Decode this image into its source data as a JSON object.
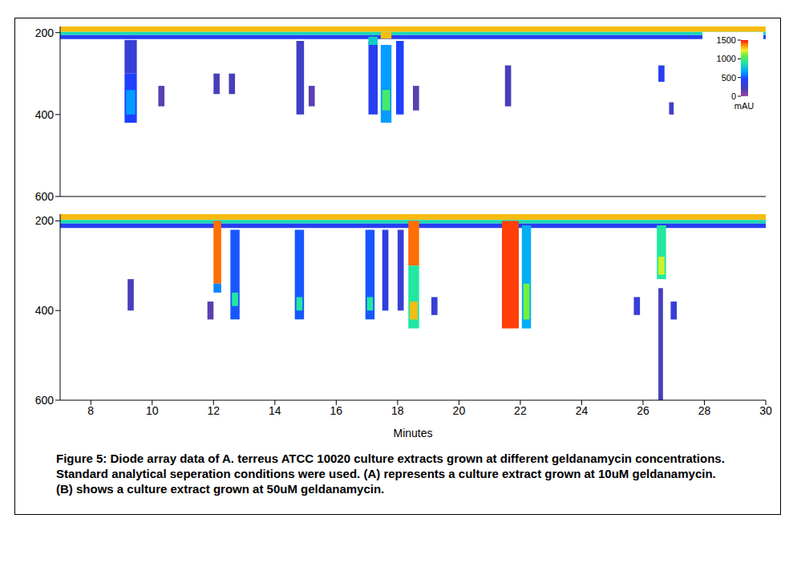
{
  "chart_data": [
    {
      "type": "heatmap",
      "panel": "A",
      "xlim": [
        7,
        30
      ],
      "xticks": [
        8,
        10,
        12,
        14,
        16,
        18,
        20,
        22,
        24,
        26,
        28,
        30
      ],
      "ylim": [
        185,
        600
      ],
      "yticks": [
        200,
        400,
        600
      ],
      "tick_labels": "y",
      "colorbar": {
        "range": [
          0,
          1500
        ],
        "ticks": [
          0,
          500,
          1000,
          1500
        ],
        "label": "mAU"
      },
      "cells": [
        {
          "x": [
            7,
            30
          ],
          "y": [
            185,
            198
          ],
          "value": 1300
        },
        {
          "x": [
            7,
            30
          ],
          "y": [
            198,
            206
          ],
          "value": 850
        },
        {
          "x": [
            7,
            30
          ],
          "y": [
            206,
            216
          ],
          "value": 400
        },
        {
          "x": [
            9.1,
            9.5
          ],
          "y": [
            218,
            300
          ],
          "value": 300
        },
        {
          "x": [
            9.1,
            9.5
          ],
          "y": [
            300,
            420
          ],
          "value": 450
        },
        {
          "x": [
            9.15,
            9.45
          ],
          "y": [
            340,
            400
          ],
          "value": 650
        },
        {
          "x": [
            10.2,
            10.4
          ],
          "y": [
            330,
            380
          ],
          "value": 150
        },
        {
          "x": [
            12.0,
            12.2
          ],
          "y": [
            300,
            350
          ],
          "value": 200
        },
        {
          "x": [
            12.5,
            12.7
          ],
          "y": [
            300,
            350
          ],
          "value": 200
        },
        {
          "x": [
            14.7,
            14.95
          ],
          "y": [
            220,
            400
          ],
          "value": 250
        },
        {
          "x": [
            15.1,
            15.3
          ],
          "y": [
            330,
            380
          ],
          "value": 150
        },
        {
          "x": [
            17.05,
            17.35
          ],
          "y": [
            220,
            400
          ],
          "value": 400
        },
        {
          "x": [
            17.05,
            17.35
          ],
          "y": [
            210,
            230
          ],
          "value": 800
        },
        {
          "x": [
            17.45,
            17.8
          ],
          "y": [
            198,
            215
          ],
          "value": 1300
        },
        {
          "x": [
            17.45,
            17.8
          ],
          "y": [
            230,
            420
          ],
          "value": 650
        },
        {
          "x": [
            17.5,
            17.75
          ],
          "y": [
            340,
            390
          ],
          "value": 1000
        },
        {
          "x": [
            17.95,
            18.2
          ],
          "y": [
            220,
            400
          ],
          "value": 450
        },
        {
          "x": [
            18.5,
            18.7
          ],
          "y": [
            330,
            390
          ],
          "value": 150
        },
        {
          "x": [
            21.5,
            21.7
          ],
          "y": [
            280,
            380
          ],
          "value": 200
        },
        {
          "x": [
            26.5,
            26.7
          ],
          "y": [
            280,
            320
          ],
          "value": 400
        },
        {
          "x": [
            26.85,
            27.0
          ],
          "y": [
            370,
            400
          ],
          "value": 250
        }
      ]
    },
    {
      "type": "heatmap",
      "panel": "B",
      "xlim": [
        7,
        30
      ],
      "xticks": [
        8,
        10,
        12,
        14,
        16,
        18,
        20,
        22,
        24,
        26,
        28,
        30
      ],
      "ylim": [
        185,
        600
      ],
      "yticks": [
        200,
        400,
        600
      ],
      "xlabel": "Minutes",
      "cells": [
        {
          "x": [
            7,
            30
          ],
          "y": [
            185,
            198
          ],
          "value": 1300
        },
        {
          "x": [
            7,
            30
          ],
          "y": [
            198,
            206
          ],
          "value": 850
        },
        {
          "x": [
            7,
            30
          ],
          "y": [
            206,
            216
          ],
          "value": 400
        },
        {
          "x": [
            9.2,
            9.4
          ],
          "y": [
            330,
            400
          ],
          "value": 200
        },
        {
          "x": [
            11.8,
            12.0
          ],
          "y": [
            380,
            420
          ],
          "value": 150
        },
        {
          "x": [
            12.0,
            12.25
          ],
          "y": [
            200,
            340
          ],
          "value": 1400
        },
        {
          "x": [
            12.0,
            12.25
          ],
          "y": [
            340,
            360
          ],
          "value": 600
        },
        {
          "x": [
            12.55,
            12.85
          ],
          "y": [
            220,
            420
          ],
          "value": 500
        },
        {
          "x": [
            12.6,
            12.8
          ],
          "y": [
            360,
            390
          ],
          "value": 900
        },
        {
          "x": [
            14.65,
            14.95
          ],
          "y": [
            220,
            420
          ],
          "value": 500
        },
        {
          "x": [
            14.7,
            14.9
          ],
          "y": [
            370,
            400
          ],
          "value": 900
        },
        {
          "x": [
            16.95,
            17.25
          ],
          "y": [
            220,
            420
          ],
          "value": 500
        },
        {
          "x": [
            17.0,
            17.2
          ],
          "y": [
            370,
            400
          ],
          "value": 900
        },
        {
          "x": [
            17.5,
            17.7
          ],
          "y": [
            220,
            400
          ],
          "value": 350
        },
        {
          "x": [
            18.0,
            18.2
          ],
          "y": [
            220,
            400
          ],
          "value": 300
        },
        {
          "x": [
            18.35,
            18.7
          ],
          "y": [
            200,
            300
          ],
          "value": 1400
        },
        {
          "x": [
            18.35,
            18.7
          ],
          "y": [
            300,
            440
          ],
          "value": 900
        },
        {
          "x": [
            18.4,
            18.65
          ],
          "y": [
            380,
            420
          ],
          "value": 1300
        },
        {
          "x": [
            19.1,
            19.3
          ],
          "y": [
            370,
            410
          ],
          "value": 300
        },
        {
          "x": [
            21.4,
            21.95
          ],
          "y": [
            200,
            440
          ],
          "value": 1450
        },
        {
          "x": [
            22.05,
            22.35
          ],
          "y": [
            210,
            440
          ],
          "value": 700
        },
        {
          "x": [
            22.1,
            22.3
          ],
          "y": [
            340,
            420
          ],
          "value": 1100
        },
        {
          "x": [
            25.7,
            25.9
          ],
          "y": [
            370,
            410
          ],
          "value": 300
        },
        {
          "x": [
            26.45,
            26.75
          ],
          "y": [
            210,
            330
          ],
          "value": 900
        },
        {
          "x": [
            26.5,
            26.7
          ],
          "y": [
            280,
            320
          ],
          "value": 1200
        },
        {
          "x": [
            26.5,
            26.65
          ],
          "y": [
            350,
            600
          ],
          "value": 200
        },
        {
          "x": [
            26.9,
            27.1
          ],
          "y": [
            380,
            420
          ],
          "value": 300
        }
      ]
    }
  ],
  "caption": "Figure 5: Diode array data of A. terreus ATCC 10020 culture extracts grown at different geldanamycin concentrations.  Standard analytical seperation conditions were used. (A) represents a culture extract grown at 10uM geldanamycin.(B) shows a culture extract grown at 50uM geldanamycin."
}
